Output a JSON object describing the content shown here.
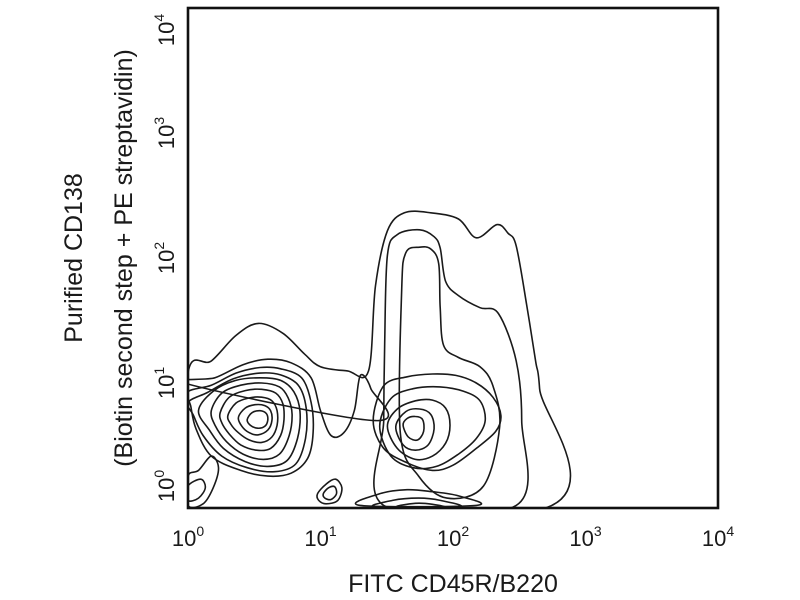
{
  "chart_data": {
    "type": "contour",
    "title": "",
    "xlabel": "FITC CD45R/B220",
    "ylabel_line1": "Purified CD138",
    "ylabel_line2": "(Biotin second step + PE streptavidin)",
    "xscale": "log",
    "yscale": "log",
    "xlim": [
      1,
      10000
    ],
    "ylim": [
      1,
      10000
    ],
    "x_ticks": [
      {
        "base": "10",
        "exp": "0"
      },
      {
        "base": "10",
        "exp": "1"
      },
      {
        "base": "10",
        "exp": "2"
      },
      {
        "base": "10",
        "exp": "3"
      },
      {
        "base": "10",
        "exp": "4"
      }
    ],
    "y_ticks": [
      {
        "base": "10",
        "exp": "0"
      },
      {
        "base": "10",
        "exp": "1"
      },
      {
        "base": "10",
        "exp": "2"
      },
      {
        "base": "10",
        "exp": "3"
      },
      {
        "base": "10",
        "exp": "4"
      }
    ],
    "grid": false,
    "legend": "none",
    "line_color": "#1a1a1a",
    "populations": [
      {
        "x": 3.9,
        "y": 3.9,
        "relative_density": "high"
      },
      {
        "x": 47,
        "y": 5.2,
        "relative_density": "medium"
      },
      {
        "x": 11,
        "y": 1.3,
        "relative_density": "low"
      }
    ],
    "contours": [
      {
        "name": "outer",
        "points": [
          [
            1,
            12
          ],
          [
            1.5,
            15
          ],
          [
            2.3,
            24
          ],
          [
            3.4,
            30
          ],
          [
            5.2,
            25
          ],
          [
            7.6,
            17
          ],
          [
            10,
            13.5
          ],
          [
            16,
            12.5
          ],
          [
            23,
            12.4
          ],
          [
            26,
            60
          ],
          [
            32,
            165
          ],
          [
            43,
            230
          ],
          [
            68,
            230
          ],
          [
            110,
            205
          ],
          [
            150,
            145
          ],
          [
            215,
            185
          ],
          [
            260,
            158
          ],
          [
            300,
            125
          ],
          [
            360,
            42
          ],
          [
            420,
            15
          ],
          [
            450,
            9
          ],
          [
            500,
            1
          ],
          [
            1,
            1
          ]
        ]
      },
      {
        "name": "c2",
        "points": [
          [
            30,
            5
          ],
          [
            30.5,
            21
          ],
          [
            32,
            105
          ],
          [
            38,
            154
          ],
          [
            56,
            168
          ],
          [
            72,
            148
          ],
          [
            80,
            120
          ],
          [
            88,
            65
          ],
          [
            110,
            50
          ],
          [
            160,
            40
          ],
          [
            220,
            36
          ],
          [
            300,
            15
          ],
          [
            330,
            5
          ],
          [
            300,
            1.05
          ],
          [
            30,
            1.05
          ]
        ]
      },
      {
        "name": "c3",
        "points": [
          [
            40,
            4
          ],
          [
            41,
            56
          ],
          [
            44,
            110
          ],
          [
            56,
            122
          ],
          [
            68,
            118
          ],
          [
            78,
            90
          ],
          [
            80,
            40
          ],
          [
            85,
            20
          ],
          [
            110,
            16
          ],
          [
            160,
            13.5
          ],
          [
            200,
            9.5
          ],
          [
            225,
            4.5
          ],
          [
            170,
            1.5
          ],
          [
            90,
            1.2
          ],
          [
            55,
            1.8
          ]
        ]
      },
      {
        "name": "c4",
        "points": [
          [
            25,
            5
          ],
          [
            30,
            3
          ],
          [
            45,
            2.3
          ],
          [
            70,
            2
          ],
          [
            100,
            2.2
          ],
          [
            150,
            3
          ],
          [
            210,
            4.1
          ],
          [
            230,
            5.5
          ],
          [
            200,
            7.7
          ],
          [
            150,
            10
          ],
          [
            105,
            11.5
          ],
          [
            70,
            11.8
          ],
          [
            45,
            11.2
          ],
          [
            30,
            9.5
          ]
        ]
      },
      {
        "name": "c5",
        "points": [
          [
            28,
            4.5
          ],
          [
            34,
            2.6
          ],
          [
            50,
            2.1
          ],
          [
            75,
            2.15
          ],
          [
            110,
            2.7
          ],
          [
            150,
            3.6
          ],
          [
            175,
            5
          ],
          [
            160,
            7.2
          ],
          [
            120,
            8.6
          ],
          [
            80,
            9.3
          ],
          [
            50,
            9
          ],
          [
            34,
            7.5
          ]
        ]
      },
      {
        "name": "c6",
        "points": [
          [
            32,
            4.5
          ],
          [
            38,
            3
          ],
          [
            52,
            2.45
          ],
          [
            70,
            2.6
          ],
          [
            88,
            3.3
          ],
          [
            95,
            4.6
          ],
          [
            88,
            6.3
          ],
          [
            70,
            7.3
          ],
          [
            52,
            7.2
          ],
          [
            38,
            6.2
          ]
        ]
      },
      {
        "name": "c7",
        "points": [
          [
            37,
            4.5
          ],
          [
            42,
            3.2
          ],
          [
            52,
            2.9
          ],
          [
            65,
            3.2
          ],
          [
            72,
            4.3
          ],
          [
            68,
            5.6
          ],
          [
            56,
            6.2
          ],
          [
            44,
            5.9
          ]
        ]
      },
      {
        "name": "c8",
        "points": [
          [
            42,
            4.6
          ],
          [
            46,
            3.7
          ],
          [
            54,
            3.5
          ],
          [
            60,
            4.1
          ],
          [
            59,
            5.1
          ],
          [
            52,
            5.4
          ],
          [
            45,
            5.2
          ]
        ]
      },
      {
        "name": "l1",
        "points": [
          [
            1,
            9.8
          ],
          [
            1.6,
            11
          ],
          [
            2.6,
            14
          ],
          [
            4,
            15.5
          ],
          [
            6,
            14.5
          ],
          [
            8.5,
            11
          ],
          [
            10,
            6
          ],
          [
            12,
            3.8
          ],
          [
            15,
            4
          ],
          [
            18,
            6
          ],
          [
            20,
            11.5
          ],
          [
            24,
            9
          ],
          [
            26,
            5
          ]
        ]
      },
      {
        "name": "l2",
        "points": [
          [
            1,
            8.5
          ],
          [
            1.5,
            9.6
          ],
          [
            2.3,
            12
          ],
          [
            3.5,
            13.3
          ],
          [
            5,
            13
          ],
          [
            7.2,
            11
          ],
          [
            8.5,
            7
          ],
          [
            8.8,
            4
          ],
          [
            8,
            2.5
          ],
          [
            6,
            1.9
          ],
          [
            4,
            1.8
          ],
          [
            2.5,
            2
          ],
          [
            1.5,
            2.6
          ],
          [
            1.15,
            4.3
          ],
          [
            1.05,
            6.5
          ]
        ]
      },
      {
        "name": "l3",
        "points": [
          [
            1,
            7
          ],
          [
            1.4,
            8.4
          ],
          [
            2.2,
            10.8
          ],
          [
            3.5,
            12
          ],
          [
            5,
            11.6
          ],
          [
            6.8,
            9.6
          ],
          [
            7.8,
            6.3
          ],
          [
            7.7,
            3.6
          ],
          [
            6.5,
            2.25
          ],
          [
            4.5,
            1.95
          ],
          [
            2.8,
            2.1
          ],
          [
            1.8,
            2.6
          ],
          [
            1.3,
            3.8
          ],
          [
            1.1,
            5.5
          ]
        ]
      },
      {
        "name": "l4",
        "points": [
          [
            1.2,
            6
          ],
          [
            1.55,
            8.6
          ],
          [
            2.3,
            10.5
          ],
          [
            3.5,
            11
          ],
          [
            5,
            10.5
          ],
          [
            6.3,
            8.5
          ],
          [
            7,
            5.9
          ],
          [
            6.7,
            3.6
          ],
          [
            5.6,
            2.4
          ],
          [
            4,
            2.15
          ],
          [
            2.7,
            2.35
          ],
          [
            1.85,
            3
          ],
          [
            1.45,
            4.2
          ]
        ]
      },
      {
        "name": "l5",
        "points": [
          [
            1.5,
            6
          ],
          [
            1.8,
            8.3
          ],
          [
            2.5,
            9.6
          ],
          [
            3.6,
            10
          ],
          [
            4.9,
            9.3
          ],
          [
            5.7,
            7.6
          ],
          [
            6.1,
            5.6
          ],
          [
            5.8,
            3.8
          ],
          [
            4.9,
            2.7
          ],
          [
            3.7,
            2.45
          ],
          [
            2.6,
            2.7
          ],
          [
            1.95,
            3.4
          ],
          [
            1.6,
            4.6
          ]
        ]
      },
      {
        "name": "l6",
        "points": [
          [
            1.75,
            5.8
          ],
          [
            2.05,
            7.7
          ],
          [
            2.7,
            8.7
          ],
          [
            3.6,
            8.9
          ],
          [
            4.6,
            8.3
          ],
          [
            5.2,
            6.8
          ],
          [
            5.3,
            5.1
          ],
          [
            5,
            3.8
          ],
          [
            4.2,
            3
          ],
          [
            3.3,
            2.9
          ],
          [
            2.5,
            3.2
          ],
          [
            2.05,
            3.9
          ],
          [
            1.8,
            4.8
          ]
        ]
      },
      {
        "name": "l7",
        "points": [
          [
            2,
            5.5
          ],
          [
            2.3,
            6.9
          ],
          [
            2.9,
            7.6
          ],
          [
            3.6,
            7.7
          ],
          [
            4.3,
            7.2
          ],
          [
            4.7,
            6
          ],
          [
            4.7,
            4.6
          ],
          [
            4.3,
            3.7
          ],
          [
            3.6,
            3.35
          ],
          [
            2.9,
            3.5
          ],
          [
            2.4,
            4
          ],
          [
            2.1,
            4.7
          ]
        ]
      },
      {
        "name": "l8",
        "points": [
          [
            2.4,
            5.3
          ],
          [
            2.7,
            6.3
          ],
          [
            3.2,
            6.7
          ],
          [
            3.8,
            6.6
          ],
          [
            4.2,
            6
          ],
          [
            4.3,
            5
          ],
          [
            4,
            4.2
          ],
          [
            3.4,
            3.85
          ],
          [
            2.9,
            4
          ],
          [
            2.55,
            4.5
          ]
        ]
      },
      {
        "name": "l9",
        "points": [
          [
            2.8,
            5.1
          ],
          [
            3.05,
            5.8
          ],
          [
            3.5,
            6
          ],
          [
            3.9,
            5.7
          ],
          [
            4,
            5.05
          ],
          [
            3.8,
            4.5
          ],
          [
            3.35,
            4.35
          ],
          [
            2.95,
            4.6
          ]
        ]
      },
      {
        "name": "b1",
        "points": [
          [
            1,
            1.8
          ],
          [
            1.2,
            2
          ],
          [
            1.5,
            2.6
          ],
          [
            1.7,
            2.1
          ],
          [
            1.55,
            1.45
          ],
          [
            1.3,
            1.08
          ],
          [
            1,
            1.05
          ]
        ]
      },
      {
        "name": "b2",
        "points": [
          [
            1,
            1.5
          ],
          [
            1.25,
            1.7
          ],
          [
            1.35,
            1.45
          ],
          [
            1.2,
            1.2
          ],
          [
            1,
            1.15
          ]
        ]
      },
      {
        "name": "b3",
        "points": [
          [
            9.5,
            1.3
          ],
          [
            11,
            1.55
          ],
          [
            13,
            1.7
          ],
          [
            14.5,
            1.45
          ],
          [
            13.5,
            1.15
          ],
          [
            11,
            1.08
          ],
          [
            9.7,
            1.15
          ]
        ]
      },
      {
        "name": "b4",
        "points": [
          [
            10.5,
            1.3
          ],
          [
            11.5,
            1.45
          ],
          [
            12.8,
            1.48
          ],
          [
            13.2,
            1.3
          ],
          [
            12,
            1.17
          ],
          [
            10.8,
            1.2
          ]
        ]
      },
      {
        "name": "b5",
        "points": [
          [
            20,
            1.05
          ],
          [
            28,
            1.3
          ],
          [
            45,
            1.4
          ],
          [
            70,
            1.35
          ],
          [
            110,
            1.25
          ],
          [
            150,
            1.05
          ]
        ]
      },
      {
        "name": "b6",
        "points": [
          [
            26,
            1.02
          ],
          [
            35,
            1.15
          ],
          [
            55,
            1.2
          ],
          [
            80,
            1.15
          ],
          [
            110,
            1.02
          ]
        ]
      },
      {
        "name": "b7",
        "points": [
          [
            38,
            1.02
          ],
          [
            52,
            1.09
          ],
          [
            70,
            1.07
          ],
          [
            85,
            1.01
          ]
        ]
      }
    ]
  }
}
